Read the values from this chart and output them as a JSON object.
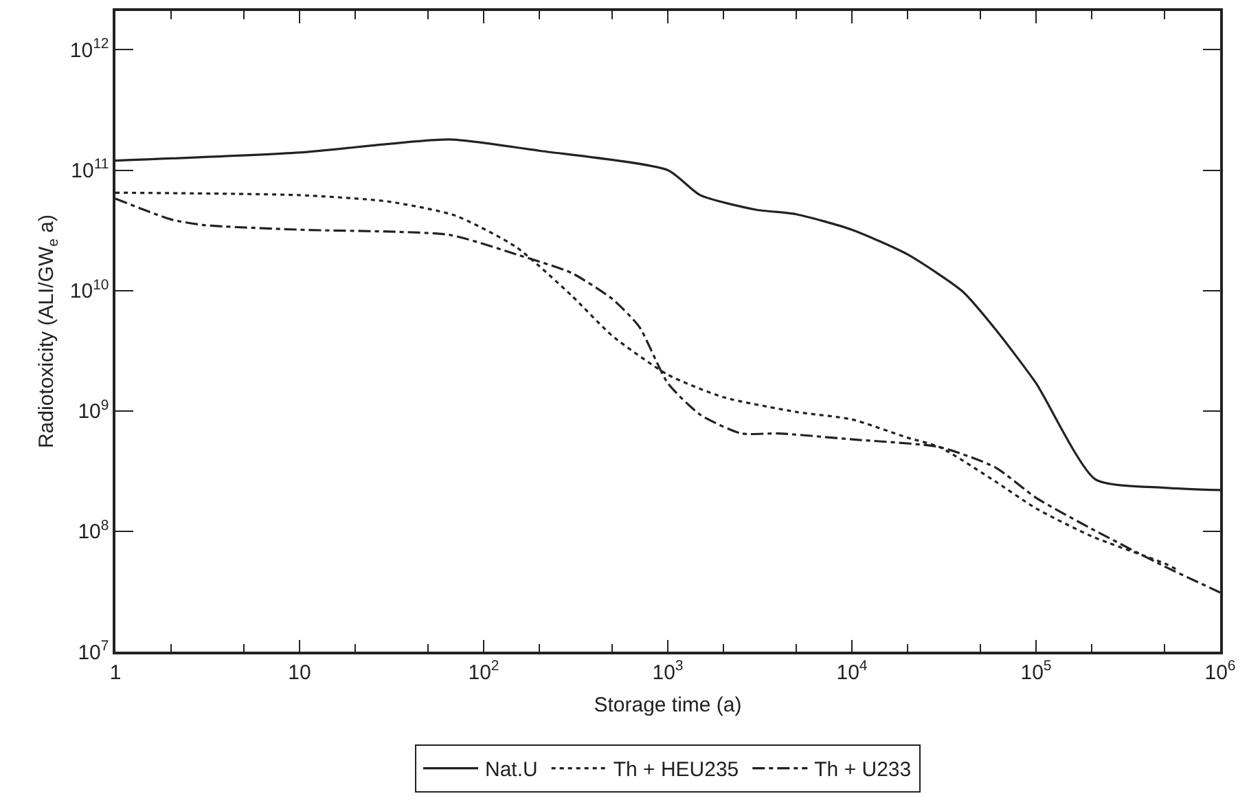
{
  "chart_data": {
    "type": "line",
    "xlabel": "Storage time (a)",
    "ylabel": "Radiotoxicity (ALI/GW$_{e}$ a)",
    "log": "xy",
    "grid": false,
    "legend": "bottom",
    "marker": "none",
    "xlim": [
      1,
      1000000
    ],
    "xticks": [
      1,
      10,
      {
        "value": 100,
        "label": "10$^{2}$"
      },
      {
        "value": 1000,
        "label": "10$^{3}$"
      },
      {
        "value": 10000,
        "label": "10$^{4}$"
      },
      {
        "value": 100000,
        "label": "10$^{5}$"
      },
      {
        "value": 1000000,
        "label": "10$^{6}$"
      }
    ],
    "ylim": [
      10000000,
      2100000000000
    ],
    "yticks": [
      {
        "value": 10000000,
        "label": "10$^{7}$"
      },
      {
        "value": 100000000,
        "label": "10$^{8}$"
      },
      {
        "value": 1000000000,
        "label": "10$^{9}$"
      },
      {
        "value": 10000000000,
        "label": "10$^{10}$"
      },
      {
        "value": 100000000000,
        "label": "10$^{11}$"
      },
      {
        "value": 1000000000000,
        "label": "10$^{12}$"
      }
    ],
    "series": [
      {
        "name": "Nat.U",
        "color": "#222222",
        "line_style": "solid",
        "x": [
          1,
          10,
          65,
          200,
          1000,
          1500,
          3000,
          5000,
          10000,
          20000,
          40000,
          60000,
          100000,
          210000,
          500000,
          1000000
        ],
        "values": [
          120000000000,
          140000000000,
          180000000000,
          145000000000,
          100000000000,
          62000000000,
          47000000000,
          43000000000,
          32000000000,
          20000000000,
          9800000000,
          4800000000,
          1700000000,
          270000000,
          230000000,
          220000000
        ]
      },
      {
        "name": "Th + HEU235",
        "color": "#222222",
        "line_style": "dotted",
        "x": [
          1,
          10,
          30,
          70,
          150,
          300,
          500,
          1000,
          2000,
          5000,
          10000,
          20000,
          30000,
          60000,
          100000,
          200000,
          500000,
          600000
        ],
        "values": [
          65000000000,
          62000000000,
          55000000000,
          42000000000,
          23000000000,
          9100000000,
          4200000000,
          2000000000,
          1300000000,
          980000000,
          850000000,
          600000000,
          500000000,
          260000000,
          155000000,
          91000000,
          54000000,
          47000000
        ]
      },
      {
        "name": "Th + U233",
        "color": "#222222",
        "line_style": "dashdot",
        "x": [
          1,
          2,
          3,
          10,
          65,
          150,
          300,
          500,
          700,
          1000,
          1500,
          2500,
          4000,
          10000,
          30000,
          60000,
          100000,
          200000,
          500000,
          1000000
        ],
        "values": [
          58000000000,
          39000000000,
          35000000000,
          32000000000,
          29000000000,
          20000000000,
          14000000000,
          8500000000,
          5000000000,
          1700000000,
          930000000,
          650000000,
          650000000,
          580000000,
          500000000,
          340000000,
          190000000,
          105000000,
          51000000,
          31000000
        ]
      }
    ]
  }
}
